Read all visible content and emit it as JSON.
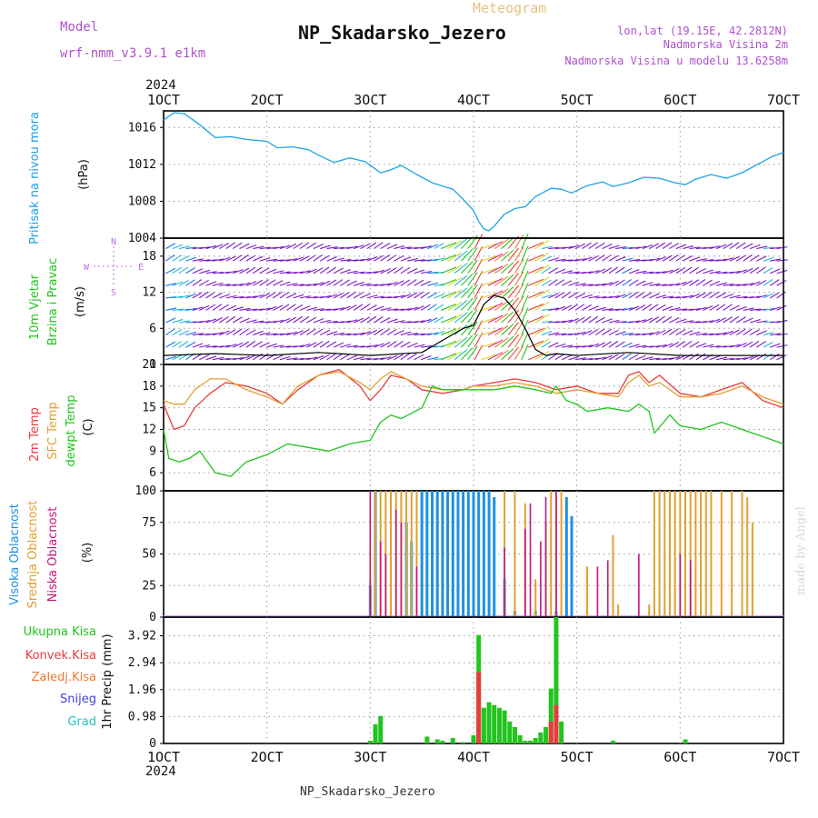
{
  "header": {
    "model_label": "Model",
    "model_name": "wrf-nmm_v3.9.1  e1km",
    "meteogram_label": "Meteogram",
    "station_title": "NP_Skadarsko_Jezero",
    "lonlat": "lon,lat (19.15E, 42.2812N)",
    "altitude": "Nadmorska Visina 2m",
    "model_altitude": "Nadmorska Visina u modelu 13.6258m",
    "credit": "made by Angel",
    "footer_station": "NP_Skadarsko_Jezero",
    "year": "2024"
  },
  "colors": {
    "pressure": "#1aa3e8",
    "t2m": "#e83c3c",
    "sfc": "#e0a030",
    "dewpt": "#22c41e",
    "high_cloud": "#1e90e0",
    "mid_cloud": "#e0a030",
    "low_cloud": "#c8147e",
    "total_precip": "#22c41e",
    "conv_precip": "#e83c3c",
    "frozen_precip": "#f07830",
    "snow": "#4040e0",
    "hail": "#20c0c0",
    "wind_speed": "#000000",
    "wind_arrows_calm": "#7a18c8",
    "header_purple": "#b050d0",
    "header_orange": "#e8c080"
  },
  "panels": {
    "pressure": {
      "label": "Pritisak na nivou mora",
      "unit": "(hPa)"
    },
    "wind": {
      "label": "10m Vjetar",
      "label2": "Brzina i Pravac",
      "unit": "(m/s)",
      "compass": {
        "n": "N",
        "s": "S",
        "e": "E",
        "w": "W"
      }
    },
    "temp": {
      "label_t2m": "2m Temp",
      "label_sfc": "SFC Temp",
      "label_dew": "dewpt Temp",
      "unit": "(C)"
    },
    "cloud": {
      "label_high": "Visoka Oblacnost",
      "label_mid": "Srednja Oblacnost",
      "label_low": "Niska Oblacnost",
      "unit": "(%)"
    },
    "precip": {
      "legend": [
        "Ukupna Kisa",
        "Konvek.Kisa",
        "Zaledj.Kisa",
        "Snijeg",
        "Grad"
      ],
      "unit": "1hr Precip (mm)"
    }
  },
  "chart_data": [
    {
      "type": "line",
      "panel": "pressure",
      "ylabel": "(hPa)",
      "ylim": [
        1004,
        1017.8
      ],
      "yticks": [
        1004,
        1008,
        1012,
        1016
      ],
      "xlim": [
        1,
        7
      ],
      "x_ticks": [
        "1OCT",
        "2OCT",
        "3OCT",
        "4OCT",
        "5OCT",
        "6OCT",
        "7OCT"
      ],
      "grid": true,
      "series": [
        {
          "x": [
            1.0,
            1.1,
            1.2,
            1.35,
            1.5,
            1.65,
            1.8,
            2.0,
            2.1,
            2.25,
            2.4,
            2.5,
            2.65,
            2.8,
            2.95,
            3.1,
            3.2,
            3.3,
            3.45,
            3.6,
            3.8,
            3.9,
            4.0,
            4.05,
            4.1,
            4.15,
            4.2,
            4.3,
            4.4,
            4.5,
            4.6,
            4.75,
            4.85,
            4.95,
            5.1,
            5.25,
            5.35,
            5.5,
            5.65,
            5.8,
            5.95,
            6.05,
            6.15,
            6.3,
            6.45,
            6.6,
            6.75,
            6.9,
            7.0
          ],
          "values": [
            1016.8,
            1017.6,
            1017.5,
            1016.3,
            1014.9,
            1015.0,
            1014.7,
            1014.5,
            1013.8,
            1013.9,
            1013.6,
            1013.0,
            1012.2,
            1012.7,
            1012.3,
            1011.1,
            1011.4,
            1011.9,
            1010.9,
            1010.0,
            1009.3,
            1008.2,
            1007.0,
            1005.8,
            1005.0,
            1004.8,
            1005.3,
            1006.6,
            1007.2,
            1007.4,
            1008.5,
            1009.4,
            1009.3,
            1008.9,
            1009.7,
            1010.1,
            1009.6,
            1010.0,
            1010.6,
            1010.5,
            1010.0,
            1009.8,
            1010.4,
            1010.9,
            1010.5,
            1011.1,
            1012.0,
            1012.9,
            1013.3
          ]
        }
      ]
    },
    {
      "type": "line",
      "panel": "wind",
      "ylabel": "(m/s)",
      "ylim": [
        0,
        21
      ],
      "yticks": [
        0,
        6,
        12,
        18
      ],
      "xlim": [
        1,
        7
      ],
      "grid": true,
      "series": [
        {
          "x": [
            1.0,
            1.5,
            2.0,
            2.5,
            3.0,
            3.5,
            3.7,
            3.9,
            4.0,
            4.1,
            4.2,
            4.3,
            4.4,
            4.5,
            4.6,
            4.7,
            4.8,
            5.0,
            5.5,
            6.0,
            6.5,
            7.0
          ],
          "values": [
            1.5,
            1.8,
            1.5,
            2.0,
            1.5,
            2.0,
            4.0,
            6.0,
            6.5,
            10.0,
            11.5,
            11.0,
            9.0,
            6.0,
            2.5,
            1.5,
            1.8,
            1.5,
            2.0,
            1.5,
            1.5,
            1.5
          ]
        }
      ]
    },
    {
      "type": "line",
      "panel": "temperature",
      "ylabel": "(C)",
      "ylim": [
        3.5,
        21
      ],
      "yticks": [
        6,
        9,
        12,
        15,
        18,
        21
      ],
      "xlim": [
        1,
        7
      ],
      "grid": true,
      "series": [
        {
          "name": "2m Temp",
          "x": [
            1.0,
            1.1,
            1.2,
            1.3,
            1.45,
            1.6,
            1.8,
            2.0,
            2.15,
            2.3,
            2.5,
            2.7,
            2.9,
            3.0,
            3.1,
            3.2,
            3.35,
            3.5,
            3.7,
            3.9,
            4.0,
            4.2,
            4.4,
            4.6,
            4.8,
            5.0,
            5.2,
            5.4,
            5.5,
            5.6,
            5.7,
            5.8,
            6.0,
            6.2,
            6.4,
            6.6,
            6.8,
            7.0
          ],
          "values": [
            15.5,
            12.0,
            12.5,
            15.0,
            17.0,
            18.5,
            18.0,
            17.0,
            15.5,
            17.5,
            19.5,
            20.3,
            18.0,
            16.0,
            17.5,
            19.5,
            19.0,
            17.5,
            17.0,
            17.5,
            18.0,
            18.5,
            19.0,
            18.5,
            17.5,
            18.0,
            17.0,
            17.0,
            19.5,
            20.0,
            18.5,
            19.5,
            17.0,
            16.5,
            17.5,
            18.5,
            16.0,
            15.0
          ]
        },
        {
          "name": "SFC Temp",
          "x": [
            1.0,
            1.1,
            1.2,
            1.3,
            1.45,
            1.6,
            1.8,
            2.0,
            2.15,
            2.3,
            2.5,
            2.7,
            2.9,
            3.0,
            3.1,
            3.2,
            3.35,
            3.5,
            3.7,
            3.9,
            4.0,
            4.2,
            4.4,
            4.6,
            4.8,
            5.0,
            5.2,
            5.4,
            5.5,
            5.6,
            5.7,
            5.8,
            6.0,
            6.2,
            6.4,
            6.6,
            6.8,
            7.0
          ],
          "values": [
            16.0,
            15.5,
            15.5,
            17.5,
            19.0,
            19.0,
            17.5,
            16.5,
            15.5,
            18.0,
            19.5,
            20.0,
            18.5,
            17.5,
            19.0,
            20.0,
            19.0,
            18.0,
            17.5,
            17.5,
            18.0,
            18.0,
            18.5,
            18.0,
            17.0,
            17.5,
            17.0,
            16.5,
            18.5,
            19.5,
            18.0,
            18.5,
            16.5,
            16.5,
            17.0,
            18.0,
            16.5,
            15.5
          ]
        },
        {
          "name": "dewpt Temp",
          "x": [
            1.0,
            1.05,
            1.15,
            1.25,
            1.35,
            1.5,
            1.65,
            1.8,
            2.0,
            2.2,
            2.4,
            2.6,
            2.8,
            3.0,
            3.1,
            3.2,
            3.3,
            3.5,
            3.6,
            3.7,
            4.0,
            4.2,
            4.4,
            4.6,
            4.75,
            4.8,
            4.9,
            5.0,
            5.1,
            5.3,
            5.5,
            5.6,
            5.7,
            5.75,
            5.9,
            6.0,
            6.2,
            6.4,
            6.6,
            6.8,
            7.0
          ],
          "values": [
            12.0,
            8.0,
            7.5,
            8.0,
            9.0,
            6.0,
            5.5,
            7.5,
            8.5,
            10.0,
            9.5,
            9.0,
            10.0,
            10.5,
            13.0,
            14.0,
            13.5,
            15.0,
            18.0,
            17.5,
            17.5,
            17.5,
            18.0,
            17.5,
            17.0,
            18.0,
            16.0,
            15.5,
            14.5,
            15.0,
            14.5,
            15.5,
            14.5,
            11.5,
            14.0,
            12.5,
            12.0,
            13.0,
            12.0,
            11.0,
            10.0
          ]
        }
      ]
    },
    {
      "type": "bar",
      "panel": "cloud",
      "ylabel": "(%)",
      "ylim": [
        0,
        100
      ],
      "yticks": [
        0,
        25,
        50,
        75,
        100
      ],
      "xlim": [
        1,
        7
      ],
      "grid": true,
      "series": [
        {
          "name": "Visoka Oblacnost",
          "x": [
            3.0,
            3.05,
            3.35,
            3.4,
            3.5,
            3.55,
            3.6,
            3.65,
            3.7,
            3.75,
            3.8,
            3.85,
            3.9,
            3.95,
            4.0,
            4.05,
            4.1,
            4.15,
            4.2,
            4.3,
            4.4,
            4.6,
            4.8,
            4.9,
            4.95
          ],
          "values": [
            25,
            100,
            75,
            60,
            100,
            100,
            100,
            100,
            100,
            100,
            100,
            100,
            100,
            100,
            100,
            100,
            100,
            100,
            95,
            30,
            5,
            5,
            5,
            95,
            80
          ]
        },
        {
          "name": "Srednja Oblacnost",
          "x": [
            3.0,
            3.05,
            3.1,
            3.15,
            3.2,
            3.25,
            3.3,
            3.35,
            3.4,
            3.45,
            4.3,
            4.4,
            4.5,
            4.6,
            4.7,
            4.75,
            4.8,
            4.85,
            5.1,
            5.35,
            5.4,
            5.7,
            5.75,
            5.8,
            5.85,
            5.9,
            5.95,
            6.0,
            6.05,
            6.1,
            6.15,
            6.2,
            6.25,
            6.3,
            6.4,
            6.5,
            6.6,
            6.65,
            6.7
          ],
          "values": [
            30,
            100,
            100,
            100,
            100,
            100,
            100,
            100,
            100,
            100,
            100,
            100,
            90,
            30,
            75,
            100,
            100,
            100,
            40,
            65,
            10,
            10,
            100,
            100,
            100,
            100,
            100,
            100,
            100,
            100,
            100,
            100,
            100,
            100,
            100,
            100,
            100,
            95,
            75
          ]
        },
        {
          "name": "Niska Oblacnost",
          "x": [
            3.0,
            3.1,
            3.15,
            3.25,
            3.3,
            3.45,
            4.3,
            4.5,
            4.55,
            4.65,
            4.7,
            4.8,
            5.2,
            5.3,
            5.6,
            6.0,
            6.1
          ],
          "values": [
            100,
            60,
            50,
            85,
            75,
            40,
            55,
            70,
            90,
            60,
            95,
            100,
            40,
            45,
            50,
            50,
            45
          ]
        }
      ]
    },
    {
      "type": "bar",
      "panel": "precip",
      "ylabel": "1hr Precip (mm)",
      "ylim": [
        0,
        4.6
      ],
      "yticks": [
        0,
        0.98,
        1.96,
        2.94,
        3.92
      ],
      "xlim": [
        1,
        7
      ],
      "grid": true,
      "series": [
        {
          "name": "Ukupna Kisa",
          "x": [
            3.0,
            3.05,
            3.1,
            3.55,
            3.65,
            3.7,
            3.8,
            3.9,
            4.0,
            4.05,
            4.1,
            4.15,
            4.2,
            4.25,
            4.3,
            4.35,
            4.4,
            4.45,
            4.5,
            4.55,
            4.6,
            4.65,
            4.7,
            4.75,
            4.8,
            4.85,
            5.35,
            6.05
          ],
          "values": [
            0.1,
            0.7,
            1.0,
            0.25,
            0.15,
            0.1,
            0.2,
            0.05,
            0.3,
            3.95,
            1.3,
            1.5,
            1.4,
            1.3,
            1.2,
            0.8,
            0.6,
            0.3,
            0.1,
            0.1,
            0.2,
            0.4,
            0.6,
            2.0,
            4.6,
            0.8,
            0.1,
            0.15
          ]
        },
        {
          "name": "Konvek.Kisa",
          "x": [
            4.05,
            4.75,
            4.8
          ],
          "values": [
            2.6,
            0.8,
            1.4
          ]
        }
      ]
    }
  ]
}
